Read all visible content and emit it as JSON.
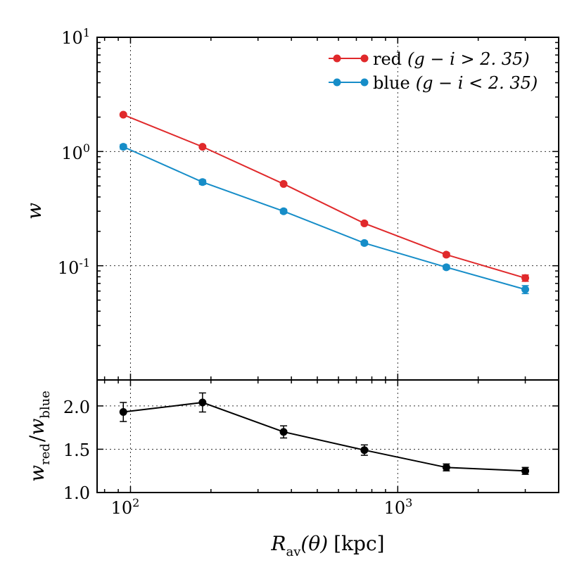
{
  "chart_data": [
    {
      "type": "line",
      "panel": "top",
      "xscale": "log",
      "yscale": "log",
      "xlim": [
        75,
        4000
      ],
      "ylim": [
        0.01,
        10
      ],
      "ylabel": "w",
      "ytick_labels": [
        {
          "base": "10",
          "exp": "1",
          "value": 10
        },
        {
          "base": "10",
          "exp": "0",
          "value": 1
        },
        {
          "base": "10",
          "exp": "-1",
          "value": 0.1
        }
      ],
      "grid": true,
      "legend_position": "top-right",
      "series": [
        {
          "name": "red",
          "legend_label": "red (g − i > 2.35)",
          "legend_prefix": "red",
          "legend_math": "(g − i > 2. 35)",
          "color": "#e0292b",
          "x": [
            94,
            186,
            374,
            750,
            1520,
            3000
          ],
          "y": [
            2.1,
            1.1,
            0.52,
            0.235,
            0.125,
            0.078
          ],
          "err": [
            0.06,
            0.03,
            0.015,
            0.008,
            0.005,
            0.005
          ]
        },
        {
          "name": "blue",
          "legend_label": "blue (g − i < 2.35)",
          "legend_prefix": "blue",
          "legend_math": "(g − i < 2. 35)",
          "color": "#168dc8",
          "x": [
            94,
            186,
            374,
            750,
            1520,
            3000
          ],
          "y": [
            1.1,
            0.54,
            0.3,
            0.158,
            0.097,
            0.062
          ],
          "err": [
            0.05,
            0.025,
            0.012,
            0.006,
            0.004,
            0.005
          ]
        }
      ]
    },
    {
      "type": "line",
      "panel": "bottom",
      "xscale": "log",
      "yscale": "linear",
      "xlim": [
        75,
        4000
      ],
      "ylim": [
        1.0,
        2.3
      ],
      "yticks": [
        1.0,
        1.5,
        2.0
      ],
      "ytick_labels": [
        "1.0",
        "1.5",
        "2.0"
      ],
      "ylabel": "w_red / w_blue",
      "ylabel_parts": {
        "w": "w",
        "num_sub": "red",
        "slash": "/",
        "den_sub": "blue"
      },
      "xlabel": "R_av(θ) [kpc]",
      "xlabel_parts": {
        "R": "R",
        "sub": "av",
        "arg": "(θ)",
        "unit": "[kpc]"
      },
      "xtick_labels": [
        {
          "base": "10",
          "exp": "2",
          "value": 100
        },
        {
          "base": "10",
          "exp": "3",
          "value": 1000
        }
      ],
      "grid": true,
      "series": [
        {
          "name": "ratio",
          "color": "#000000",
          "x": [
            94,
            186,
            374,
            750,
            1520,
            3000
          ],
          "y": [
            1.93,
            2.04,
            1.7,
            1.49,
            1.29,
            1.25
          ],
          "err": [
            0.11,
            0.11,
            0.07,
            0.06,
            0.04,
            0.04
          ]
        }
      ]
    }
  ]
}
